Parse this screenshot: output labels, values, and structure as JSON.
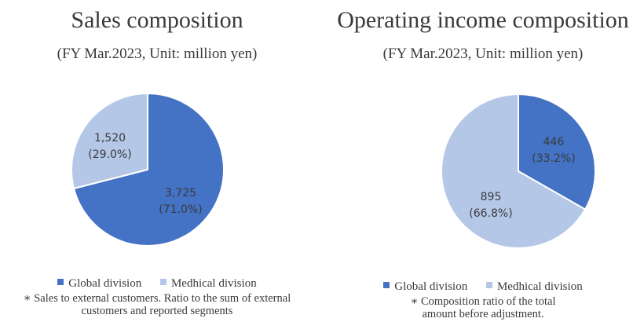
{
  "colors": {
    "global": "#4472c4",
    "medhical": "#b4c7e7"
  },
  "charts": [
    {
      "title": "Sales composition",
      "subtitle": "(FY Mar.2023, Unit: million yen)",
      "legend": [
        "Global division",
        "Medhical division"
      ],
      "note": "∗ Sales to external customers. Ratio to the sum of external customers and reported segments",
      "chart_data": {
        "type": "pie",
        "slices": [
          {
            "label": "Global division",
            "value": 3725,
            "value_label": "3,725",
            "percent_label": "(71.0%)"
          },
          {
            "label": "Medhical division",
            "value": 1520,
            "value_label": "1,520",
            "percent_label": "(29.0%)"
          }
        ]
      }
    },
    {
      "title": "Operating income composition",
      "subtitle": "(FY Mar.2023, Unit: million yen)",
      "legend": [
        "Global division",
        "Medhical division"
      ],
      "note": "∗ Composition ratio of the total amount before adjustment.",
      "chart_data": {
        "type": "pie",
        "slices": [
          {
            "label": "Global division",
            "value": 446,
            "value_label": "446",
            "percent_label": "(33.2%)"
          },
          {
            "label": "Medhical division",
            "value": 895,
            "value_label": "895",
            "percent_label": "(66.8%)"
          }
        ]
      }
    }
  ]
}
